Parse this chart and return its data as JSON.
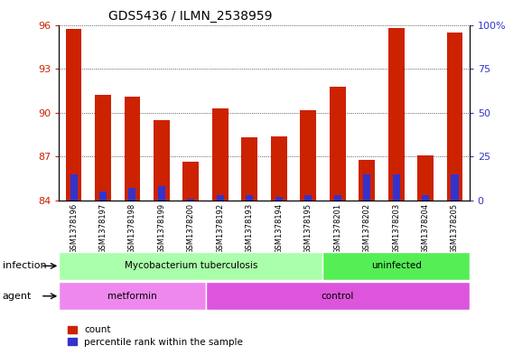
{
  "title": "GDS5436 / ILMN_2538959",
  "samples": [
    "GSM1378196",
    "GSM1378197",
    "GSM1378198",
    "GSM1378199",
    "GSM1378200",
    "GSM1378192",
    "GSM1378193",
    "GSM1378194",
    "GSM1378195",
    "GSM1378201",
    "GSM1378202",
    "GSM1378203",
    "GSM1378204",
    "GSM1378205"
  ],
  "count_values": [
    95.7,
    91.2,
    91.1,
    89.5,
    86.65,
    90.3,
    88.3,
    88.4,
    90.2,
    91.8,
    86.8,
    95.8,
    87.1,
    95.5
  ],
  "percentile_values": [
    15.0,
    5.0,
    7.0,
    8.0,
    1.0,
    3.0,
    3.0,
    2.0,
    3.0,
    3.0,
    15.0,
    15.0,
    3.0,
    15.0
  ],
  "bar_bottom": 84.0,
  "ylim": [
    84.0,
    96.0
  ],
  "yticks_left": [
    84,
    87,
    90,
    93,
    96
  ],
  "yticks_right": [
    0,
    25,
    50,
    75,
    100
  ],
  "yright_labels": [
    "0",
    "25",
    "50",
    "75",
    "100%"
  ],
  "red_color": "#cc2200",
  "blue_color": "#3333cc",
  "bar_width": 0.55,
  "infection_groups": [
    {
      "label": "Mycobacterium tuberculosis",
      "start": 0,
      "end": 9,
      "color": "#aaffaa"
    },
    {
      "label": "uninfected",
      "start": 9,
      "end": 14,
      "color": "#55ee55"
    }
  ],
  "agent_groups": [
    {
      "label": "metformin",
      "start": 0,
      "end": 5,
      "color": "#ee88ee"
    },
    {
      "label": "control",
      "start": 5,
      "end": 14,
      "color": "#dd55dd"
    }
  ],
  "infection_label": "infection",
  "agent_label": "agent",
  "bg_color": "#cccccc",
  "legend_count_label": "count",
  "legend_percentile_label": "percentile rank within the sample",
  "grid_color": "#000000",
  "title_fontsize": 10
}
